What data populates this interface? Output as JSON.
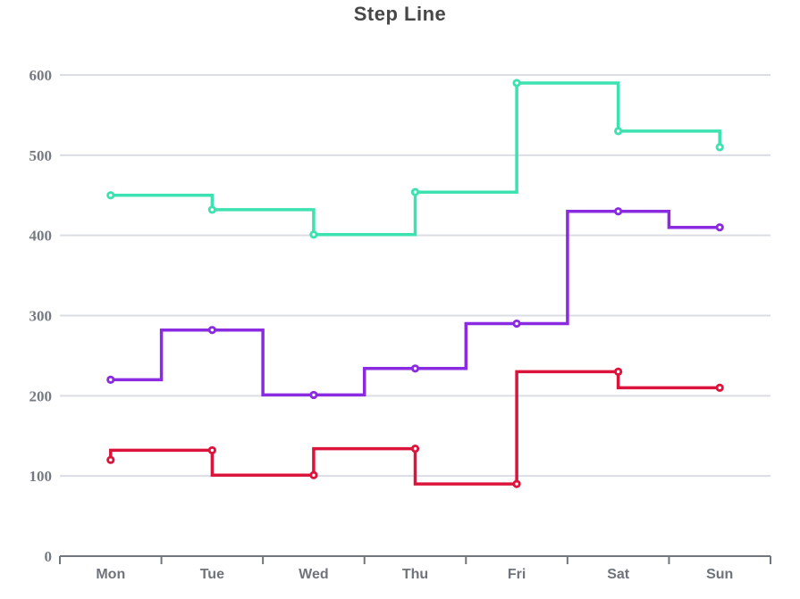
{
  "chart": {
    "title": "Step Line"
  },
  "chart_data": {
    "type": "line",
    "line_style": "step",
    "title": "Step Line",
    "categories": [
      "Mon",
      "Tue",
      "Wed",
      "Thu",
      "Fri",
      "Sat",
      "Sun"
    ],
    "series": [
      {
        "id": "teal-step-end-series",
        "step": "end",
        "color": "#3CE2AF",
        "values": [
          450,
          432,
          401,
          454,
          590,
          530,
          510
        ]
      },
      {
        "id": "purple-step-middle-series",
        "step": "middle",
        "color": "#8A2BE2",
        "values": [
          220,
          282,
          201,
          234,
          290,
          430,
          410
        ]
      },
      {
        "id": "red-step-start-series",
        "step": "start",
        "color": "#DC143C",
        "values": [
          120,
          132,
          101,
          134,
          90,
          230,
          210
        ]
      }
    ],
    "xlabel": "",
    "ylabel": "",
    "y_ticks": [
      0,
      100,
      200,
      300,
      400,
      500,
      600
    ],
    "ylim": [
      0,
      600
    ],
    "grid": true,
    "legend": "none",
    "marker": "circle-with-white-center-dot",
    "colors": {
      "gridline": "#DBDDE4",
      "axis_line": "#71757D",
      "tick_label": "#74787F",
      "title": "#474747",
      "background": "#FFFFFF"
    }
  }
}
